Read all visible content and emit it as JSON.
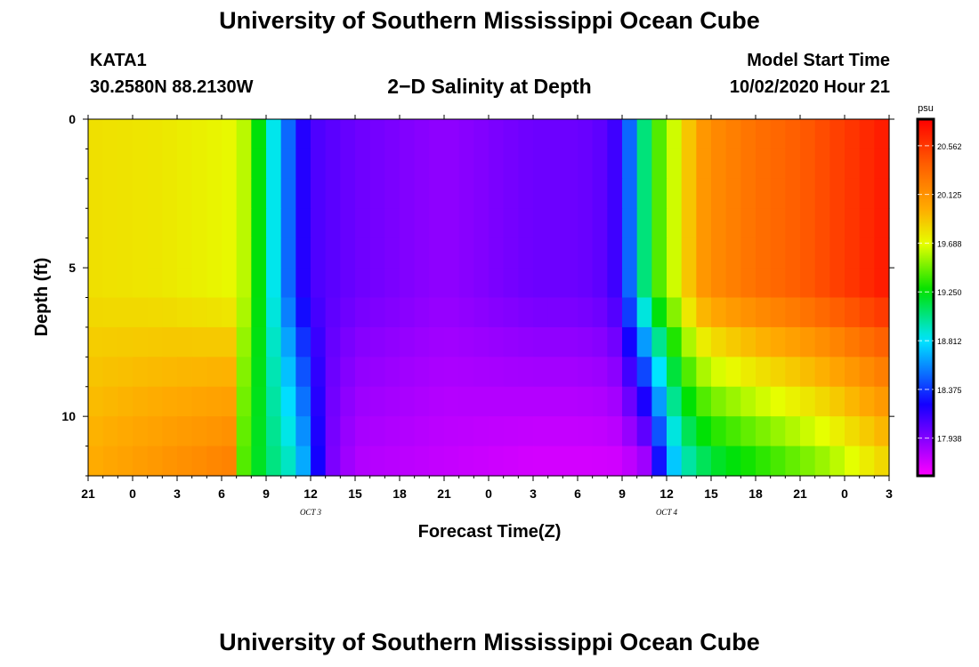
{
  "header": {
    "title": "University of Southern Mississippi Ocean Cube",
    "station_id": "KATA1",
    "coordinates": "30.2580N 88.2130W",
    "subtitle": "2−D Salinity at Depth",
    "model_start_label": "Model Start Time",
    "model_start_value": "10/02/2020 Hour 21"
  },
  "footer": {
    "title": "University of Southern Mississippi Ocean Cube"
  },
  "chart_data": {
    "type": "heatmap",
    "title": "2−D Salinity at Depth",
    "xlabel": "Forecast Time(Z)",
    "ylabel": "Depth (ft)",
    "x_tick_labels": [
      "21",
      "0",
      "3",
      "6",
      "9",
      "12",
      "15",
      "18",
      "21",
      "0",
      "3",
      "6",
      "9",
      "12",
      "15",
      "18",
      "21",
      "0",
      "3"
    ],
    "x_range_hours": [
      0,
      54
    ],
    "date_labels": [
      {
        "text": "OCT 3",
        "hour": 15
      },
      {
        "text": "OCT 4",
        "hour": 39
      }
    ],
    "y_tick_labels": [
      "0",
      "5",
      "10"
    ],
    "y_tick_values": [
      0,
      5,
      10
    ],
    "y_range_ft": [
      0,
      12
    ],
    "colorbar": {
      "unit": "psu",
      "min": 17.6,
      "max": 20.8,
      "tick_labels": [
        "20.562",
        "20.125",
        "19.688",
        "19.250",
        "18.812",
        "18.375",
        "17.938"
      ],
      "tick_values": [
        20.562,
        20.125,
        19.688,
        19.25,
        18.812,
        18.375,
        17.938
      ]
    },
    "depth_layers_ft": [
      0,
      1,
      2,
      3,
      4,
      5,
      6,
      7,
      8,
      9,
      10,
      11,
      12
    ],
    "surface_profile_psu": [
      [
        0,
        19.8
      ],
      [
        5,
        19.77
      ],
      [
        10,
        19.7
      ],
      [
        11,
        19.5
      ],
      [
        12,
        19.0
      ],
      [
        13,
        18.7
      ],
      [
        14,
        18.3
      ],
      [
        15,
        18.1
      ],
      [
        18,
        18.0
      ],
      [
        21,
        17.95
      ],
      [
        24,
        17.9
      ],
      [
        27,
        17.95
      ],
      [
        30,
        18.0
      ],
      [
        33,
        18.0
      ],
      [
        35,
        18.05
      ],
      [
        36,
        18.2
      ],
      [
        37,
        18.8
      ],
      [
        38,
        19.3
      ],
      [
        40,
        19.75
      ],
      [
        41,
        20.05
      ],
      [
        42,
        20.15
      ],
      [
        45,
        20.3
      ],
      [
        48,
        20.4
      ],
      [
        51,
        20.55
      ],
      [
        54,
        20.7
      ]
    ],
    "bottom_profile_psu": [
      [
        0,
        20.0
      ],
      [
        6,
        20.15
      ],
      [
        10,
        20.25
      ],
      [
        10.5,
        19.4
      ],
      [
        12,
        19.1
      ],
      [
        14,
        18.9
      ],
      [
        15,
        18.5
      ],
      [
        16,
        18.0
      ],
      [
        18,
        17.8
      ],
      [
        24,
        17.75
      ],
      [
        30,
        17.7
      ],
      [
        36,
        17.7
      ],
      [
        38,
        17.8
      ],
      [
        38.5,
        18.2
      ],
      [
        39,
        18.5
      ],
      [
        40,
        18.85
      ],
      [
        42,
        19.1
      ],
      [
        46,
        19.3
      ],
      [
        50,
        19.5
      ],
      [
        54,
        19.8
      ]
    ]
  }
}
